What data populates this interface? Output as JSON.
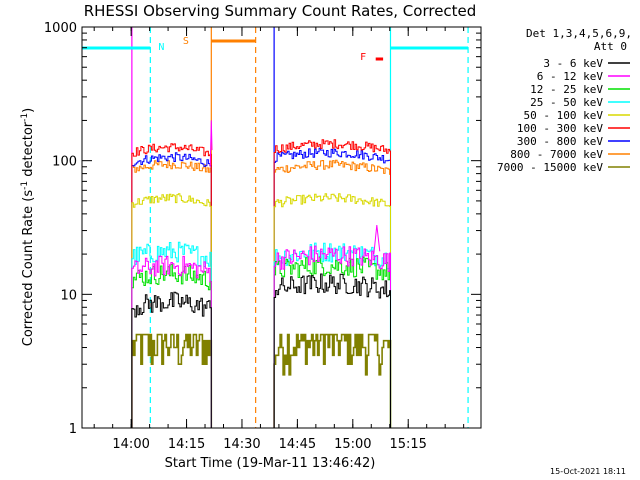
{
  "chart_data": {
    "type": "line",
    "title": "RHESSI Observing Summary Count Rates, Corrected",
    "xlabel": "Start Time (19-Mar-11 13:46:42)",
    "ylabel_main": "Corrected Count Rate (s",
    "ylabel_exp1": "-1",
    "ylabel_mid": " detector",
    "ylabel_exp2": "-1",
    "ylabel_end": ")",
    "x_unit": "minutes since 13:46:42",
    "xlim": [
      0,
      108
    ],
    "ylim": [
      1,
      1000
    ],
    "y_scale": "log",
    "x_ticks": [
      {
        "label": "14:00",
        "v": 13.3
      },
      {
        "label": "14:15",
        "v": 28.3
      },
      {
        "label": "14:30",
        "v": 43.3
      },
      {
        "label": "14:45",
        "v": 58.3
      },
      {
        "label": "15:00",
        "v": 73.3
      },
      {
        "label": "15:15",
        "v": 88.3
      }
    ],
    "y_ticks": [
      {
        "label": "1",
        "v": 1
      },
      {
        "label": "10",
        "v": 10
      },
      {
        "label": "100",
        "v": 100
      },
      {
        "label": "1000",
        "v": 1000
      }
    ],
    "legend_header": [
      "Det 1,3,4,5,6,9,",
      "Att 0"
    ],
    "legend": [
      {
        "name": "3 - 6 keV",
        "color": "#000000"
      },
      {
        "name": "6 - 12 keV",
        "color": "#ff00ff"
      },
      {
        "name": "12 - 25 keV",
        "color": "#00e000"
      },
      {
        "name": "25 - 50 keV",
        "color": "#00ffff"
      },
      {
        "name": "50 - 100 keV",
        "color": "#d8d800"
      },
      {
        "name": "100 - 300 keV",
        "color": "#ff0000"
      },
      {
        "name": "300 - 800 keV",
        "color": "#0000ff"
      },
      {
        "name": "800 - 7000 keV",
        "color": "#ff8000"
      },
      {
        "name": "7000 - 15000 keV",
        "color": "#808000"
      }
    ],
    "segments": [
      {
        "start": 13.5,
        "end": 35.0
      },
      {
        "start": 52.0,
        "end": 83.5
      }
    ],
    "series_levels": [
      {
        "name": "3 - 6 keV",
        "seg1": 8,
        "seg2": 11
      },
      {
        "name": "6 - 12 keV",
        "seg1": 15,
        "seg2": 18
      },
      {
        "name": "12 - 25 keV",
        "seg1": 13,
        "seg2": 15
      },
      {
        "name": "25 - 50 keV",
        "seg1": 19,
        "seg2": 19
      },
      {
        "name": "50 - 100 keV",
        "seg1": 48,
        "seg2": 48
      },
      {
        "name": "100 - 300 keV",
        "seg1": 115,
        "seg2": 122
      },
      {
        "name": "300 - 800 keV",
        "seg1": 97,
        "seg2": 105
      },
      {
        "name": "800 - 7000 keV",
        "seg1": 86,
        "seg2": 85
      },
      {
        "name": "7000 - 15000 keV",
        "seg1": 4,
        "seg2": 4
      }
    ],
    "annotations": [
      {
        "label": "N",
        "color": "#00ffff",
        "x": 18.5
      },
      {
        "label": "S",
        "color": "#ff8000",
        "x": 30.0
      },
      {
        "label": "F",
        "color": "#ff0000",
        "x": 78.0
      }
    ],
    "night_bars": [
      {
        "start": 0,
        "end": 18.5,
        "color": "#00ffff"
      },
      {
        "start": 83.5,
        "end": 104.5,
        "color": "#00ffff"
      }
    ],
    "saa_bar": {
      "start": 35.0,
      "end": 47.0,
      "color": "#ff8000"
    },
    "flare_bar": {
      "start": 79.5,
      "end": 81.5,
      "color": "#ff0000"
    },
    "vlines": [
      {
        "x": 13.5,
        "color": "#ff00ff",
        "style": "solid"
      },
      {
        "x": 18.5,
        "color": "#00ffff",
        "style": "dashed"
      },
      {
        "x": 35.0,
        "color": "#ff8000",
        "style": "solid"
      },
      {
        "x": 47.0,
        "color": "#ff8000",
        "style": "dashed"
      },
      {
        "x": 52.0,
        "color": "#0000ff",
        "style": "solid"
      },
      {
        "x": 83.5,
        "color": "#00ffff",
        "style": "solid"
      },
      {
        "x": 104.5,
        "color": "#00ffff",
        "style": "dashed"
      }
    ]
  },
  "footer_date": "15-Oct-2021 18:11"
}
